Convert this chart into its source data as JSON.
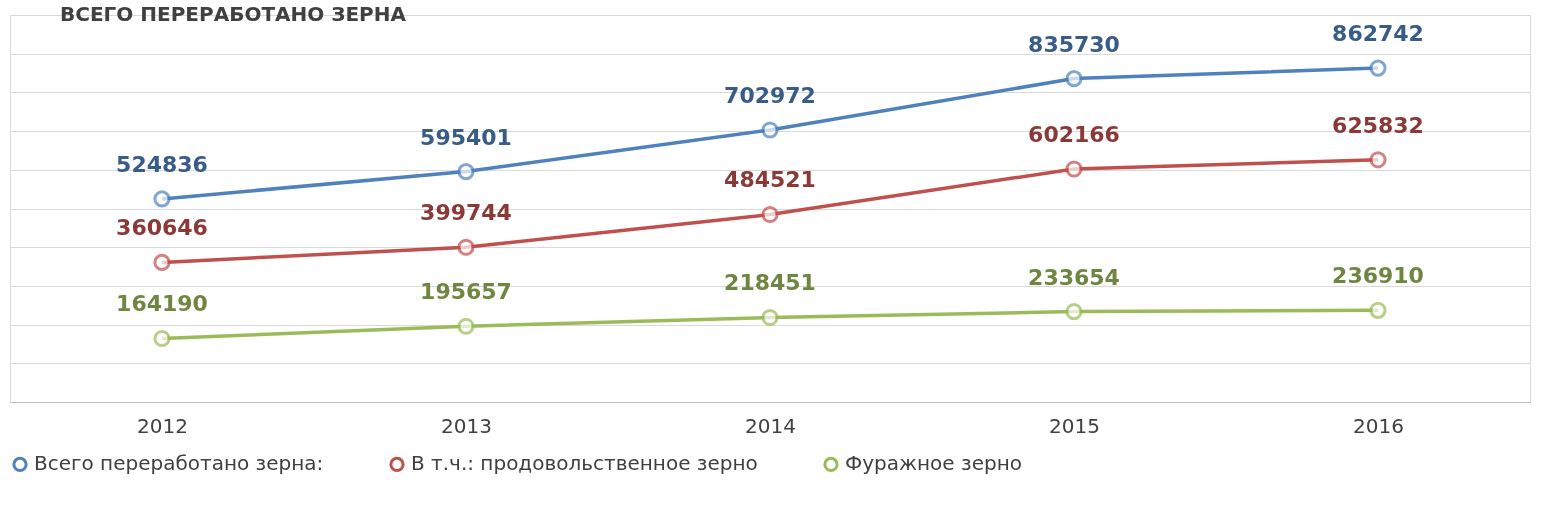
{
  "chart_data": {
    "type": "line",
    "title": "ВСЕГО ПЕРЕРАБОТАНО ЗЕРНА",
    "categories": [
      "2012",
      "2013",
      "2014",
      "2015",
      "2016"
    ],
    "series": [
      {
        "name": "Всего переработано зерна:",
        "color": "#4f81bd",
        "values": [
          524836,
          595401,
          702972,
          835730,
          862742
        ]
      },
      {
        "name": "В т.ч.: продовольственное зерно",
        "color": "#c0504d",
        "values": [
          360646,
          399744,
          484521,
          602166,
          625832
        ]
      },
      {
        "name": "Фуражное зерно",
        "color": "#9bbb59",
        "values": [
          164190,
          195657,
          218451,
          233654,
          236910
        ]
      }
    ],
    "ylim": [
      0,
      1000000
    ],
    "yticks": [
      {
        "value": 0,
        "label": null
      },
      {
        "value": 100000,
        "label": null
      },
      {
        "value": 200000,
        "label": null
      },
      {
        "value": 300000,
        "label": null
      },
      {
        "value": 400000,
        "label": null
      },
      {
        "value": 500000,
        "label": null
      },
      {
        "value": 600000,
        "label": null
      },
      {
        "value": 700000,
        "label": null
      },
      {
        "value": 800000,
        "label": null
      },
      {
        "value": 900000,
        "label": null
      },
      {
        "value": 1000000,
        "label": null
      }
    ],
    "tick_labels": "x",
    "grid": "y",
    "legend": "bottom",
    "marker": "circle",
    "line_style": "solid",
    "data_labels": true
  }
}
